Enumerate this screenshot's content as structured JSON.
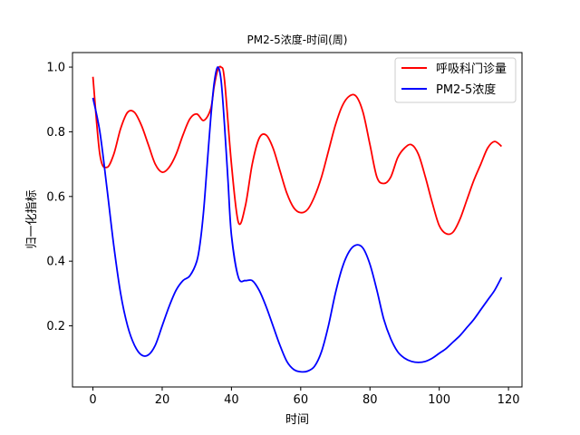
{
  "chart_data": {
    "type": "line",
    "title": "PM2-5浓度-时间(周)",
    "xlabel": "时间",
    "ylabel": "归一化指标",
    "xlim": [
      -5.9,
      123.9
    ],
    "ylim": [
      0.011,
      1.045
    ],
    "xticks": [
      0,
      20,
      40,
      60,
      80,
      100,
      120
    ],
    "yticks": [
      0.2,
      0.4,
      0.6,
      0.8,
      1.0
    ],
    "ytick_labels": [
      "0.2",
      "0.4",
      "0.6",
      "0.8",
      "1.0"
    ],
    "grid": false,
    "legend_position": "top-right",
    "series": [
      {
        "name": "呼吸科门诊量",
        "color": "#ff0000",
        "x": [
          0,
          2,
          4,
          6,
          8,
          10,
          12,
          14,
          16,
          18,
          20,
          22,
          24,
          26,
          28,
          30,
          32,
          34,
          35,
          36,
          37,
          38,
          40,
          42,
          44,
          46,
          48,
          50,
          52,
          54,
          56,
          58,
          60,
          62,
          64,
          66,
          68,
          70,
          72,
          74,
          76,
          78,
          80,
          82,
          84,
          86,
          88,
          90,
          92,
          94,
          96,
          98,
          100,
          102,
          104,
          106,
          108,
          110,
          112,
          114,
          116,
          118
        ],
        "y": [
          0.97,
          0.73,
          0.69,
          0.73,
          0.81,
          0.86,
          0.86,
          0.82,
          0.76,
          0.7,
          0.675,
          0.69,
          0.73,
          0.79,
          0.84,
          0.855,
          0.835,
          0.87,
          0.94,
          0.99,
          1.0,
          0.96,
          0.7,
          0.52,
          0.57,
          0.7,
          0.78,
          0.79,
          0.75,
          0.68,
          0.61,
          0.565,
          0.55,
          0.56,
          0.6,
          0.66,
          0.74,
          0.82,
          0.88,
          0.91,
          0.91,
          0.86,
          0.76,
          0.66,
          0.64,
          0.66,
          0.72,
          0.75,
          0.76,
          0.73,
          0.66,
          0.58,
          0.51,
          0.485,
          0.49,
          0.53,
          0.59,
          0.65,
          0.7,
          0.75,
          0.77,
          0.755
        ]
      },
      {
        "name": "PM2-5浓度",
        "color": "#0000ff",
        "x": [
          0,
          2,
          4,
          6,
          8,
          10,
          12,
          14,
          16,
          18,
          20,
          22,
          24,
          26,
          28,
          30,
          31,
          32,
          33,
          34,
          35,
          36,
          37,
          38,
          39,
          40,
          42,
          44,
          46,
          48,
          50,
          52,
          54,
          56,
          58,
          60,
          62,
          64,
          66,
          68,
          70,
          72,
          74,
          76,
          78,
          80,
          82,
          84,
          86,
          88,
          90,
          92,
          94,
          96,
          98,
          100,
          102,
          104,
          106,
          108,
          110,
          112,
          114,
          116,
          118
        ],
        "y": [
          0.905,
          0.8,
          0.63,
          0.45,
          0.3,
          0.2,
          0.14,
          0.11,
          0.11,
          0.14,
          0.2,
          0.26,
          0.31,
          0.34,
          0.355,
          0.4,
          0.46,
          0.56,
          0.7,
          0.84,
          0.95,
          1.0,
          0.96,
          0.82,
          0.65,
          0.48,
          0.35,
          0.34,
          0.34,
          0.31,
          0.26,
          0.2,
          0.14,
          0.09,
          0.065,
          0.058,
          0.06,
          0.075,
          0.12,
          0.2,
          0.3,
          0.38,
          0.43,
          0.45,
          0.44,
          0.39,
          0.31,
          0.22,
          0.16,
          0.12,
          0.1,
          0.09,
          0.087,
          0.09,
          0.1,
          0.115,
          0.13,
          0.15,
          0.17,
          0.195,
          0.22,
          0.25,
          0.28,
          0.31,
          0.35
        ]
      }
    ]
  }
}
